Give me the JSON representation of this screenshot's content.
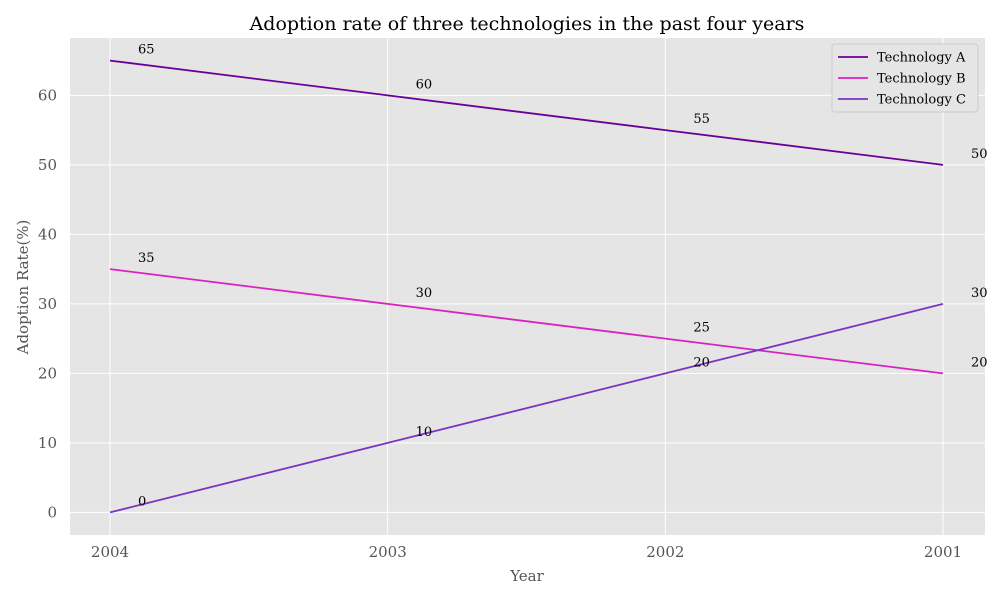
{
  "chart_data": {
    "type": "line",
    "title": "Adoption rate of three technologies in the past four years",
    "xlabel": "Year",
    "ylabel": "Adoption Rate(%)",
    "categories": [
      "2004",
      "2003",
      "2002",
      "2001"
    ],
    "ylim": [
      -3.25,
      68.25
    ],
    "yticks": [
      0,
      10,
      20,
      30,
      40,
      50,
      60
    ],
    "grid": true,
    "legend_position": "top-right",
    "background": "#e5e5e5",
    "series": [
      {
        "name": "Technology A",
        "color": "#6a0096",
        "values": [
          65,
          60,
          55,
          50
        ]
      },
      {
        "name": "Technology B",
        "color": "#dd1fc4",
        "values": [
          35,
          30,
          25,
          20
        ]
      },
      {
        "name": "Technology C",
        "color": "#7b35c0",
        "values": [
          0,
          10,
          20,
          30
        ]
      }
    ]
  }
}
